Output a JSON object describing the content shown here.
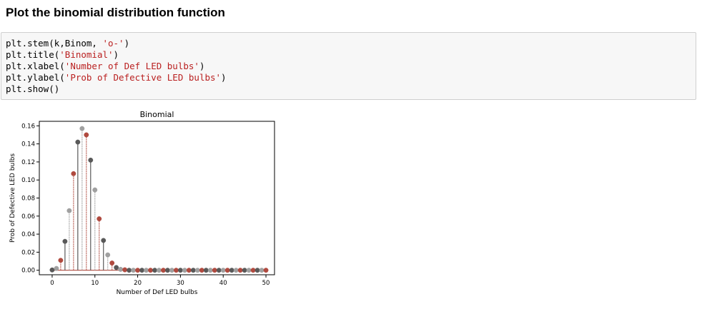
{
  "cell": {
    "heading": "Plot the binomial distribution function",
    "code_lines": [
      {
        "pre": "plt.stem(k,Binom, ",
        "str": "'o-'",
        "post": ")"
      },
      {
        "pre": "plt.title(",
        "str": "'Binomial'",
        "post": ")"
      },
      {
        "pre": "plt.xlabel(",
        "str": "'Number of Def LED bulbs'",
        "post": ")"
      },
      {
        "pre": "plt.ylabel(",
        "str": "'Prob of Defective LED bulbs'",
        "post": ")"
      },
      {
        "pre": "plt.show()",
        "str": "",
        "post": ""
      }
    ]
  },
  "chart_data": {
    "type": "scatter",
    "title": "Binomial",
    "xlabel": "Number of Def LED bulbs",
    "ylabel": "Prob of Defective LED bulbs",
    "xlim": [
      -3,
      52
    ],
    "ylim": [
      -0.005,
      0.165
    ],
    "xticks": [
      0,
      10,
      20,
      30,
      40,
      50
    ],
    "yticks": [
      0.0,
      0.02,
      0.04,
      0.06,
      0.08,
      0.1,
      0.12,
      0.14,
      0.16
    ],
    "grid": false,
    "x": [
      0,
      1,
      2,
      3,
      4,
      5,
      6,
      7,
      8,
      9,
      10,
      11,
      12,
      13,
      14,
      15,
      16,
      17,
      18,
      19,
      20,
      21,
      22,
      23,
      24,
      25,
      26,
      27,
      28,
      29,
      30,
      31,
      32,
      33,
      34,
      35,
      36,
      37,
      38,
      39,
      40,
      41,
      42,
      43,
      44,
      45,
      46,
      47,
      48,
      49,
      50
    ],
    "y": [
      0.0003,
      0.002,
      0.011,
      0.032,
      0.066,
      0.107,
      0.142,
      0.157,
      0.15,
      0.122,
      0.089,
      0.057,
      0.033,
      0.017,
      0.008,
      0.003,
      0.001,
      0.0005,
      0,
      0,
      0,
      0,
      0,
      0,
      0,
      0,
      0,
      0,
      0,
      0,
      0,
      0,
      0,
      0,
      0,
      0,
      0,
      0,
      0,
      0,
      0,
      0,
      0,
      0,
      0,
      0,
      0,
      0,
      0,
      0,
      0
    ],
    "colors": [
      "#595959",
      "#a0a0a0",
      "#b04a3f"
    ]
  }
}
